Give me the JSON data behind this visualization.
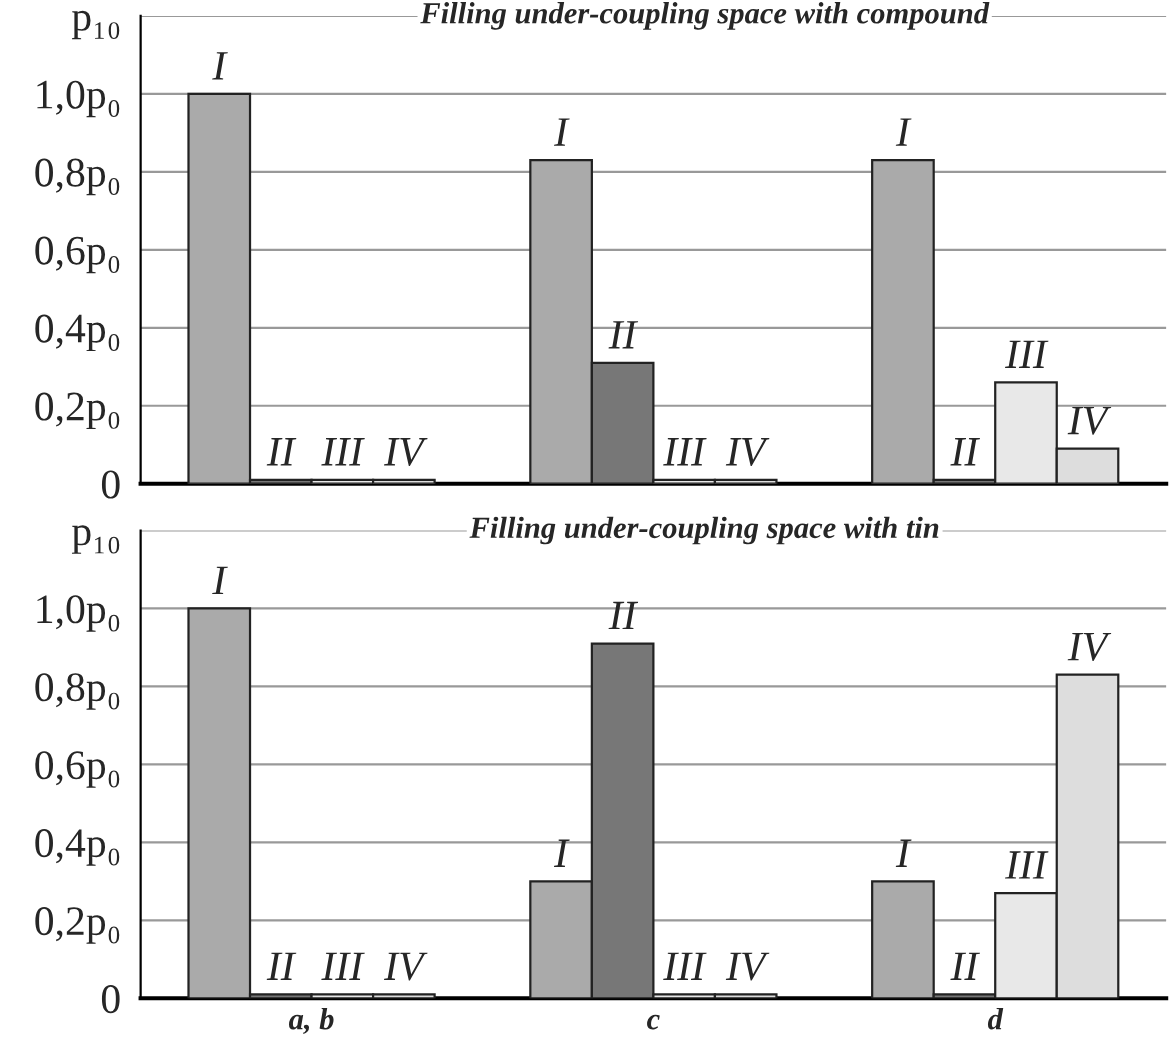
{
  "chart_data": [
    {
      "type": "bar",
      "title": "Filling under-coupling space with compound",
      "categories": [
        null,
        null,
        null
      ],
      "grid": "y",
      "legend": false,
      "ylim": [
        0,
        1.2
      ],
      "yticks": [
        0,
        {
          "value": 0.2,
          "label": "0,2p₀"
        },
        {
          "value": 0.4,
          "label": "0,4p₀"
        },
        {
          "value": 0.6,
          "label": "0,6p₀"
        },
        {
          "value": 0.8,
          "label": "0,8p₀"
        },
        {
          "value": 1.0,
          "label": "1,0p₀"
        },
        {
          "value": 1.2,
          "label": "p₁₀"
        }
      ],
      "series": [
        {
          "name": "I",
          "color": "#aaaaaa",
          "values": [
            1.0,
            0.83,
            0.83
          ]
        },
        {
          "name": "II",
          "color": "#777777",
          "values": [
            0.01,
            0.31,
            0.01
          ]
        },
        {
          "name": "III",
          "color": "#e8e8e8",
          "values": [
            0.01,
            0.01,
            0.26
          ]
        },
        {
          "name": "IV",
          "color": "#dddddd",
          "values": [
            0.01,
            0.01,
            0.09
          ]
        }
      ]
    },
    {
      "type": "bar",
      "title": "Filling under-coupling space with tin",
      "categories": [
        "a, b",
        "c",
        "d"
      ],
      "grid": "y",
      "legend": false,
      "ylim": [
        0,
        1.2
      ],
      "yticks": [
        0,
        {
          "value": 0.2,
          "label": "0,2p₀"
        },
        {
          "value": 0.4,
          "label": "0,4p₀"
        },
        {
          "value": 0.6,
          "label": "0,6p₀"
        },
        {
          "value": 0.8,
          "label": "0,8p₀"
        },
        {
          "value": 1.0,
          "label": "1,0p₀"
        },
        {
          "value": 1.2,
          "label": "p₁₀"
        }
      ],
      "series": [
        {
          "name": "I",
          "color": "#aaaaaa",
          "values": [
            1.0,
            0.3,
            0.3
          ]
        },
        {
          "name": "II",
          "color": "#777777",
          "values": [
            0.01,
            0.91,
            0.01
          ]
        },
        {
          "name": "III",
          "color": "#e8e8e8",
          "values": [
            0.01,
            0.01,
            0.27
          ]
        },
        {
          "name": "IV",
          "color": "#dddddd",
          "values": [
            0.01,
            0.01,
            0.83
          ]
        }
      ]
    }
  ]
}
